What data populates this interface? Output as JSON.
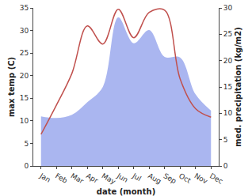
{
  "chart_data": {
    "type": "line",
    "x_label": "date (month)",
    "y_label": "max temp (C)",
    "y2_label": "med. precipitation (kg/m2)",
    "categories": [
      "Jan",
      "Feb",
      "Mar",
      "Apr",
      "May",
      "Jun",
      "Jul",
      "Aug",
      "Sep",
      "Oct",
      "Nov",
      "Dec"
    ],
    "series": [
      {
        "name": "med. precipitation",
        "type": "area",
        "axis": "y2",
        "color": "#aab6f0",
        "values": [
          9.4,
          9.1,
          9.7,
          12.1,
          15.0,
          28.2,
          23.3,
          25.8,
          20.7,
          20.6,
          13.6,
          10.5
        ]
      },
      {
        "name": "max temp",
        "type": "line",
        "color": "#c0504d",
        "values": [
          7.0,
          13.5,
          20.5,
          31.0,
          27.0,
          34.7,
          28.4,
          34.0,
          34.5,
          19.3,
          12.7,
          10.8
        ]
      }
    ],
    "ylim": [
      0,
      35
    ],
    "yticks": [
      0,
      5,
      10,
      15,
      20,
      25,
      30,
      35
    ],
    "y2lim": [
      0,
      30
    ],
    "y2ticks": [
      0,
      5,
      10,
      15,
      20,
      25,
      30
    ],
    "grid": false
  }
}
